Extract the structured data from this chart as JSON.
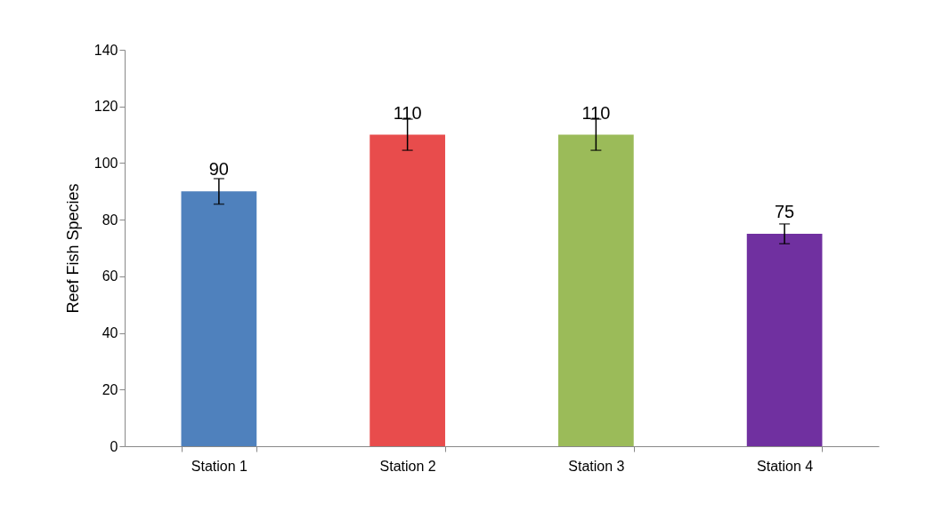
{
  "chart_data": {
    "type": "bar",
    "ylabel": "Reef Fish Species",
    "categories": [
      "Station 1",
      "Station 2",
      "Station 3",
      "Station 4"
    ],
    "values": [
      90,
      110,
      110,
      75
    ],
    "colors": [
      "#4f81bd",
      "#e84c4c",
      "#9bbb59",
      "#7030a0"
    ],
    "errors": [
      4.5,
      5.5,
      5.5,
      3.5
    ],
    "data_labels": true,
    "ylim": [
      0,
      140
    ],
    "yticks": [
      0,
      20,
      40,
      60,
      80,
      100,
      120,
      140
    ],
    "grid": false
  }
}
